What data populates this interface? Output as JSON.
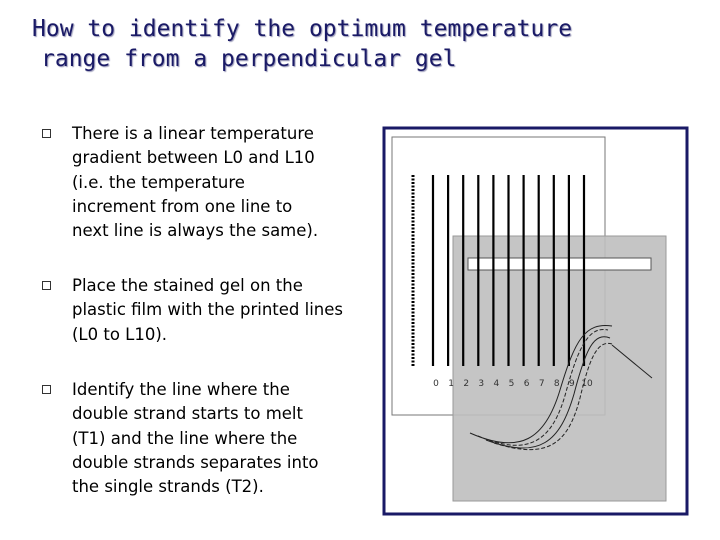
{
  "title": {
    "lines": [
      "How to identify the optimum temperature",
      "range from a perpendicular gel"
    ]
  },
  "bullets": [
    {
      "lines": [
        "There is a linear temperature",
        "gradient between L0 and L10",
        "(i.e. the temperature",
        "increment from one line to",
        "next line is always the same)."
      ]
    },
    {
      "lines": [
        "Place the stained gel on the",
        "plastic film with the printed lines",
        "(L0 to L10)."
      ]
    },
    {
      "lines": [
        "Identify the line where the",
        "double strand starts to melt",
        "(T1) and the line where the",
        "double strands separates into",
        "the single strands (T2)."
      ]
    }
  ],
  "diagram": {
    "line_labels": [
      "0",
      "1",
      "2",
      "3",
      "4",
      "5",
      "6",
      "7",
      "8",
      "9",
      "10"
    ]
  }
}
